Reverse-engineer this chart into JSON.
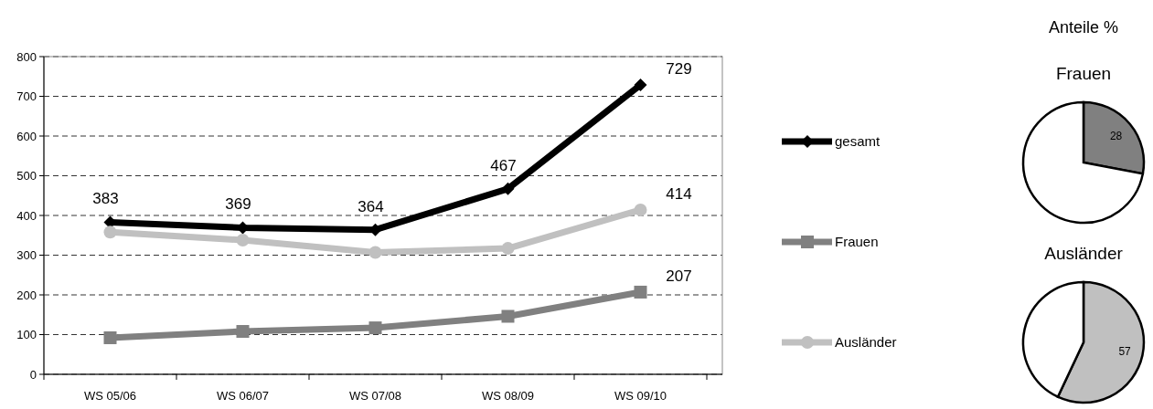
{
  "chart_data": [
    {
      "type": "line",
      "categories": [
        "WS 05/06",
        "WS 06/07",
        "WS 07/08",
        "WS 08/09",
        "WS 09/10"
      ],
      "ylim": [
        0,
        800
      ],
      "yticks": [
        0,
        100,
        200,
        300,
        400,
        500,
        600,
        700,
        800
      ],
      "grid": "y",
      "line_style": "solid",
      "legend": "right",
      "series": [
        {
          "name": "gesamt",
          "color": "#000000",
          "marker": "diamond",
          "values": [
            383,
            369,
            364,
            467,
            729
          ],
          "value_labels": [
            "383",
            "369",
            "364",
            "467",
            "729"
          ]
        },
        {
          "name": "Frauen",
          "color": "#808080",
          "marker": "square",
          "values": [
            92,
            108,
            117,
            146,
            207
          ],
          "value_labels": [
            null,
            null,
            null,
            null,
            "207"
          ]
        },
        {
          "name": "Ausländer",
          "color": "#c0c0c0",
          "marker": "circle",
          "values": [
            358,
            338,
            307,
            317,
            414
          ],
          "value_labels": [
            null,
            null,
            null,
            null,
            "414"
          ]
        }
      ]
    },
    {
      "type": "pie",
      "title": "Anteile %",
      "subtitle": "Frauen",
      "categories": [
        null,
        null
      ],
      "values": [
        28,
        72
      ],
      "colors": [
        "#808080",
        "#ffffff"
      ],
      "value_labels": [
        "28",
        null
      ]
    },
    {
      "type": "pie",
      "subtitle": "Ausländer",
      "categories": [
        null,
        null
      ],
      "values": [
        57,
        43
      ],
      "colors": [
        "#c0c0c0",
        "#ffffff"
      ],
      "value_labels": [
        "57",
        null
      ]
    }
  ]
}
